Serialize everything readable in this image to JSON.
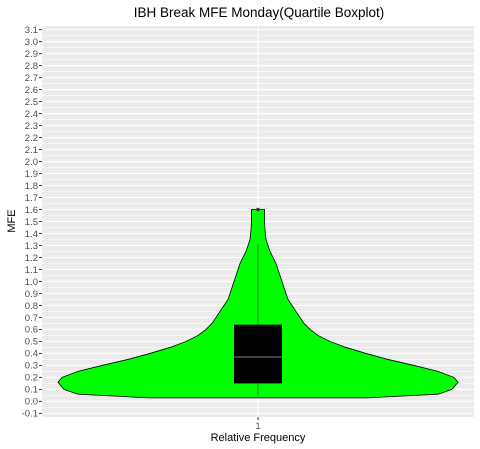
{
  "chart_data": {
    "type": "violin",
    "title": "IBH Break MFE Monday(Quartile Boxplot)",
    "xlabel": "Relative Frequency",
    "ylabel": "MFE",
    "x_categories": [
      "1"
    ],
    "ylim": [
      -0.13,
      3.13
    ],
    "y_ticks": [
      -0.1,
      0.0,
      0.1,
      0.2,
      0.3,
      0.4,
      0.5,
      0.6,
      0.7,
      0.8,
      0.9,
      1.0,
      1.1,
      1.2,
      1.3,
      1.4,
      1.5,
      1.6,
      1.7,
      1.8,
      1.9,
      2.0,
      2.1,
      2.2,
      2.3,
      2.4,
      2.5,
      2.6,
      2.7,
      2.8,
      2.9,
      3.0,
      3.1
    ],
    "y_tick_labels": [
      "-0.1",
      "0.0",
      "0.1",
      "0.2",
      "0.3",
      "0.4",
      "0.5",
      "0.6",
      "0.7",
      "0.8",
      "0.9",
      "1.0",
      "1.1",
      "1.2",
      "1.3",
      "1.4",
      "1.5",
      "1.6",
      "1.7",
      "1.8",
      "1.9",
      "2.0",
      "2.1",
      "2.2",
      "2.3",
      "2.4",
      "2.5",
      "2.6",
      "2.7",
      "2.8",
      "2.9",
      "3.0",
      "3.1"
    ],
    "violin": {
      "fill": "#00ff00",
      "outline": "#000000",
      "y_min": 0.03,
      "y_max": 1.6,
      "density_profile": [
        {
          "y": 0.03,
          "w": 0.55
        },
        {
          "y": 0.06,
          "w": 0.9
        },
        {
          "y": 0.1,
          "w": 0.97
        },
        {
          "y": 0.16,
          "w": 1.0
        },
        {
          "y": 0.2,
          "w": 0.98
        },
        {
          "y": 0.25,
          "w": 0.9
        },
        {
          "y": 0.3,
          "w": 0.78
        },
        {
          "y": 0.35,
          "w": 0.65
        },
        {
          "y": 0.4,
          "w": 0.54
        },
        {
          "y": 0.45,
          "w": 0.44
        },
        {
          "y": 0.5,
          "w": 0.36
        },
        {
          "y": 0.55,
          "w": 0.3
        },
        {
          "y": 0.6,
          "w": 0.26
        },
        {
          "y": 0.65,
          "w": 0.23
        },
        {
          "y": 0.7,
          "w": 0.21
        },
        {
          "y": 0.75,
          "w": 0.19
        },
        {
          "y": 0.8,
          "w": 0.17
        },
        {
          "y": 0.85,
          "w": 0.15
        },
        {
          "y": 0.9,
          "w": 0.14
        },
        {
          "y": 0.95,
          "w": 0.13
        },
        {
          "y": 1.0,
          "w": 0.12
        },
        {
          "y": 1.05,
          "w": 0.11
        },
        {
          "y": 1.1,
          "w": 0.1
        },
        {
          "y": 1.15,
          "w": 0.09
        },
        {
          "y": 1.2,
          "w": 0.075
        },
        {
          "y": 1.25,
          "w": 0.06
        },
        {
          "y": 1.3,
          "w": 0.05
        },
        {
          "y": 1.35,
          "w": 0.04
        },
        {
          "y": 1.4,
          "w": 0.037
        },
        {
          "y": 1.45,
          "w": 0.034
        },
        {
          "y": 1.5,
          "w": 0.033
        },
        {
          "y": 1.55,
          "w": 0.033
        },
        {
          "y": 1.6,
          "w": 0.033
        }
      ]
    },
    "boxplot": {
      "fill": "#000000",
      "median_color": "#808080",
      "q1": 0.15,
      "median": 0.37,
      "q3": 0.64,
      "whisker_low": 0.05,
      "whisker_high": 1.31,
      "outliers": [
        1.6
      ]
    }
  }
}
